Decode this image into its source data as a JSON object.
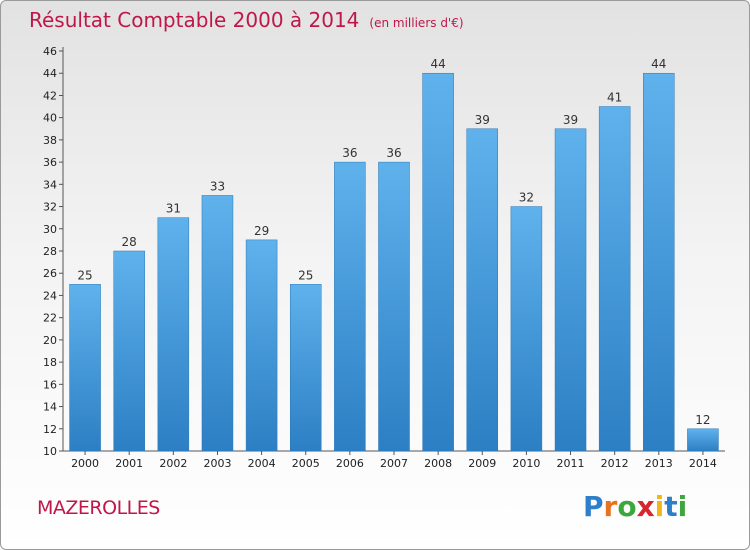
{
  "chart_data": {
    "type": "bar",
    "title": "Résultat Comptable 2000 à 2014",
    "subtitle": "(en milliers d'€)",
    "categories": [
      "2000",
      "2001",
      "2002",
      "2003",
      "2004",
      "2005",
      "2006",
      "2007",
      "2008",
      "2009",
      "2010",
      "2011",
      "2012",
      "2013",
      "2014"
    ],
    "values": [
      25,
      28,
      31,
      33,
      29,
      25,
      36,
      36,
      44,
      39,
      32,
      39,
      41,
      44,
      12
    ],
    "ylim": [
      10,
      46
    ],
    "yticks": [
      10,
      12,
      14,
      16,
      18,
      20,
      22,
      24,
      26,
      28,
      30,
      32,
      34,
      36,
      38,
      40,
      42,
      44,
      46
    ],
    "xlabel": "",
    "ylabel": "",
    "grid": false,
    "bar_color": "#4a9fdf"
  },
  "footer": {
    "place": "MAZEROLLES",
    "logo_letters": [
      "P",
      "r",
      "o",
      "x",
      "i",
      "t",
      "i"
    ],
    "logo_colors": [
      "#2e7fc9",
      "#e8731e",
      "#3da73d",
      "#d6262e",
      "#f2b619",
      "#2e7fc9",
      "#3da73d"
    ]
  }
}
